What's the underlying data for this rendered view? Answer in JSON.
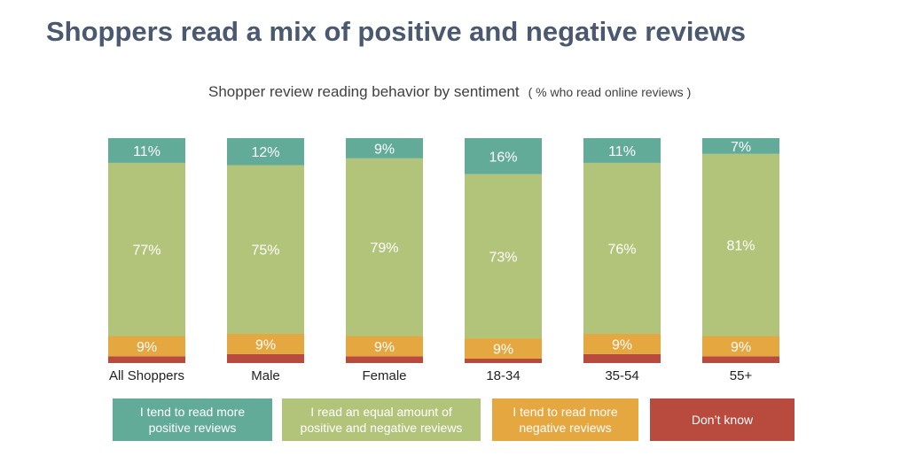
{
  "headline": "Shoppers read a mix of positive and negative reviews",
  "chart_data": {
    "type": "bar",
    "stacked": true,
    "title": "Shopper review reading behavior by sentiment",
    "subtitle": "( % who read online reviews )",
    "categories": [
      "All Shoppers",
      "Male",
      "Female",
      "18-34",
      "35-54",
      "55+"
    ],
    "series": [
      {
        "name": "Don’t know",
        "values": [
          3,
          4,
          3,
          2,
          4,
          3
        ],
        "color": "#b94a3e",
        "label_shown": false
      },
      {
        "name": "I tend to read more negative reviews",
        "values": [
          9,
          9,
          9,
          9,
          9,
          9
        ],
        "color": "#e5a740",
        "label_shown": true
      },
      {
        "name": "I read an equal amount of positive and negative reviews",
        "values": [
          77,
          75,
          79,
          73,
          76,
          81
        ],
        "color": "#b2c47a",
        "label_shown": true
      },
      {
        "name": "I tend to read more positive reviews",
        "values": [
          11,
          12,
          9,
          16,
          11,
          7
        ],
        "color": "#62ab98",
        "label_shown": true
      }
    ],
    "ylim": [
      0,
      100
    ],
    "value_suffix": "%"
  },
  "legend": [
    {
      "label": "I tend to read more\npositive reviews",
      "color": "#62ab98"
    },
    {
      "label": "I read an equal amount of\npositive and negative reviews",
      "color": "#b2c47a"
    },
    {
      "label": "I tend to read more\nnegative reviews",
      "color": "#e5a740"
    },
    {
      "label": "Don’t know",
      "color": "#b94a3e"
    }
  ]
}
